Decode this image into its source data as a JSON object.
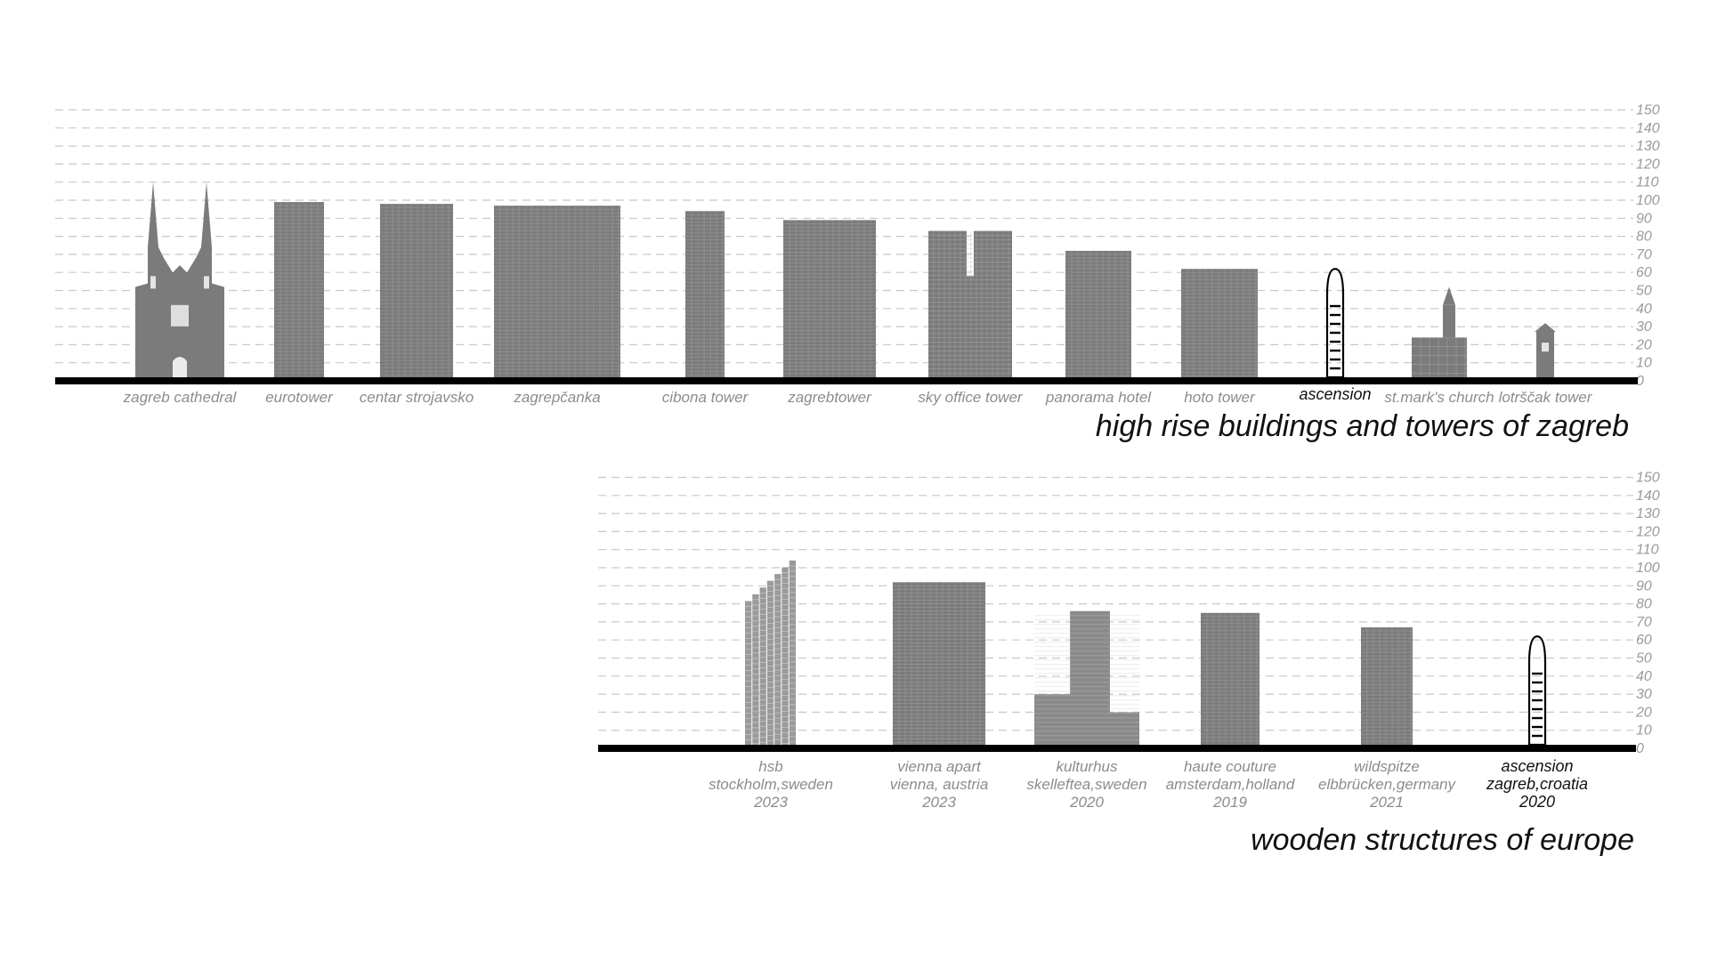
{
  "colors": {
    "building": "#7b7b7b",
    "building_dark": "#5f5f5f",
    "ground": "#000000",
    "grid": "#c8c8c8",
    "label": "#8c8c8c",
    "highlight": "#111111"
  },
  "chart_data": [
    {
      "type": "bar",
      "title": "high rise buildings and towers of zagreb",
      "y_ticks": [
        "150",
        "140",
        "130",
        "120",
        "110",
        "100",
        "90",
        "80",
        "70",
        "60",
        "50",
        "40",
        "30",
        "20",
        "10",
        "0"
      ],
      "ylim": [
        0,
        150
      ],
      "grid": true,
      "buildings": [
        {
          "name": "zagreb cathedral",
          "height": 108,
          "shape": "cathedral",
          "highlight": false
        },
        {
          "name": "eurotower",
          "height": 97,
          "shape": "tower",
          "highlight": false
        },
        {
          "name": "centar strojavsko",
          "height": 96,
          "shape": "tower",
          "highlight": false
        },
        {
          "name": "zagrepčanka",
          "height": 95,
          "shape": "tower",
          "highlight": false
        },
        {
          "name": "cibona tower",
          "height": 92,
          "shape": "tower",
          "highlight": false
        },
        {
          "name": "zagrebtower",
          "height": 87,
          "shape": "tower",
          "highlight": false
        },
        {
          "name": "sky office tower",
          "height": 81,
          "shape": "twin",
          "highlight": false
        },
        {
          "name": "panorama hotel",
          "height": 70,
          "shape": "tower",
          "highlight": false
        },
        {
          "name": "hoto tower",
          "height": 60,
          "shape": "tower",
          "highlight": false
        },
        {
          "name": "ascension",
          "height": 60,
          "shape": "ascension",
          "highlight": true
        },
        {
          "name": "st.mark's church",
          "height": 50,
          "shape": "church",
          "highlight": false
        },
        {
          "name": "lotrščak tower",
          "height": 30,
          "shape": "small-tower",
          "highlight": false
        }
      ]
    },
    {
      "type": "bar",
      "title": "wooden structures of europe",
      "y_ticks": [
        "150",
        "140",
        "130",
        "120",
        "110",
        "100",
        "90",
        "80",
        "70",
        "60",
        "50",
        "40",
        "30",
        "20",
        "10",
        "0"
      ],
      "ylim": [
        0,
        150
      ],
      "grid": true,
      "buildings": [
        {
          "name": "hsb",
          "location": "stockholm,sweden",
          "year": "2023",
          "height": 102,
          "shape": "stepped",
          "highlight": false
        },
        {
          "name": "vienna apart",
          "location": "vienna, austria",
          "year": "2023",
          "height": 90,
          "shape": "tower",
          "highlight": false
        },
        {
          "name": "kulturhus",
          "location": "skelleftea,sweden",
          "year": "2020",
          "height": 74,
          "shape": "stacked",
          "highlight": false
        },
        {
          "name": "haute couture",
          "location": "amsterdam,holland",
          "year": "2019",
          "height": 73,
          "shape": "tower",
          "highlight": false
        },
        {
          "name": "wildspitze",
          "location": "elbbrücken,germany",
          "year": "2021",
          "height": 65,
          "shape": "tower",
          "highlight": false
        },
        {
          "name": "ascension",
          "location": "zagreb,croatia",
          "year": "2020",
          "height": 60,
          "shape": "ascension",
          "highlight": true
        }
      ]
    }
  ]
}
